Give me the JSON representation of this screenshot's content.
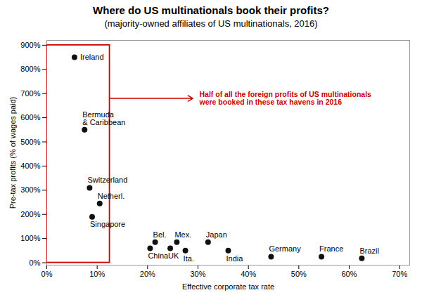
{
  "chart_data": {
    "type": "scatter",
    "title": "Where do US multinationals book their profits?",
    "subtitle": "(majority-owned affiliates of US multinationals, 2016)",
    "xlabel": "Effective corporate tax rate",
    "ylabel": "Pre-tax profits (% of wages paid)",
    "color": "#111111",
    "points": [
      {
        "label": "Ireland",
        "x": 0.055,
        "y": 850
      },
      {
        "label": "Bermuda\n& Caribbean",
        "x": 0.075,
        "y": 550
      },
      {
        "label": "Switzerland",
        "x": 0.085,
        "y": 310
      },
      {
        "label": "Netherl.",
        "x": 0.105,
        "y": 245
      },
      {
        "label": "Singapore",
        "x": 0.09,
        "y": 190
      },
      {
        "label": "China",
        "x": 0.205,
        "y": 60
      },
      {
        "label": "Bel.",
        "x": 0.215,
        "y": 85
      },
      {
        "label": "UK",
        "x": 0.245,
        "y": 60
      },
      {
        "label": "Mex.",
        "x": 0.258,
        "y": 85
      },
      {
        "label": "Ita.",
        "x": 0.275,
        "y": 50
      },
      {
        "label": "Japan",
        "x": 0.32,
        "y": 85
      },
      {
        "label": "India",
        "x": 0.36,
        "y": 50
      },
      {
        "label": "Germany",
        "x": 0.445,
        "y": 25
      },
      {
        "label": "France",
        "x": 0.545,
        "y": 25
      },
      {
        "label": "Brazil",
        "x": 0.625,
        "y": 18
      }
    ],
    "highlight_box": {
      "x": [
        0.0,
        0.125
      ],
      "y": [
        0,
        900
      ],
      "color": "#cc0000"
    },
    "arrow": {
      "x1": 0.125,
      "y1": 680,
      "x2": 0.29,
      "y2": 680,
      "color": "#cc0000"
    },
    "annotation": {
      "text": "Half of all the foreign profits of US multinationals\nwere booked in these tax havens in 2016",
      "x": 0.3,
      "y": 680,
      "color": "#cc0000"
    },
    "xlim": [
      0.0,
      0.72
    ],
    "ylim": [
      -10,
      920
    ],
    "xticks": [
      {
        "value": 0.0,
        "label": "0%"
      },
      {
        "value": 0.1,
        "label": "10%"
      },
      {
        "value": 0.2,
        "label": "20%"
      },
      {
        "value": 0.3,
        "label": "30%"
      },
      {
        "value": 0.4,
        "label": "40%"
      },
      {
        "value": 0.5,
        "label": "50%"
      },
      {
        "value": 0.6,
        "label": "60%"
      },
      {
        "value": 0.7,
        "label": "70%"
      }
    ],
    "yticks": [
      {
        "value": 0,
        "label": "0%"
      },
      {
        "value": 100,
        "label": "100%"
      },
      {
        "value": 200,
        "label": "200%"
      },
      {
        "value": 300,
        "label": "300%"
      },
      {
        "value": 400,
        "label": "400%"
      },
      {
        "value": 500,
        "label": "500%"
      },
      {
        "value": 600,
        "label": "600%"
      },
      {
        "value": 700,
        "label": "700%"
      },
      {
        "value": 800,
        "label": "800%"
      },
      {
        "value": 900,
        "label": "900%"
      }
    ],
    "grid": false
  }
}
